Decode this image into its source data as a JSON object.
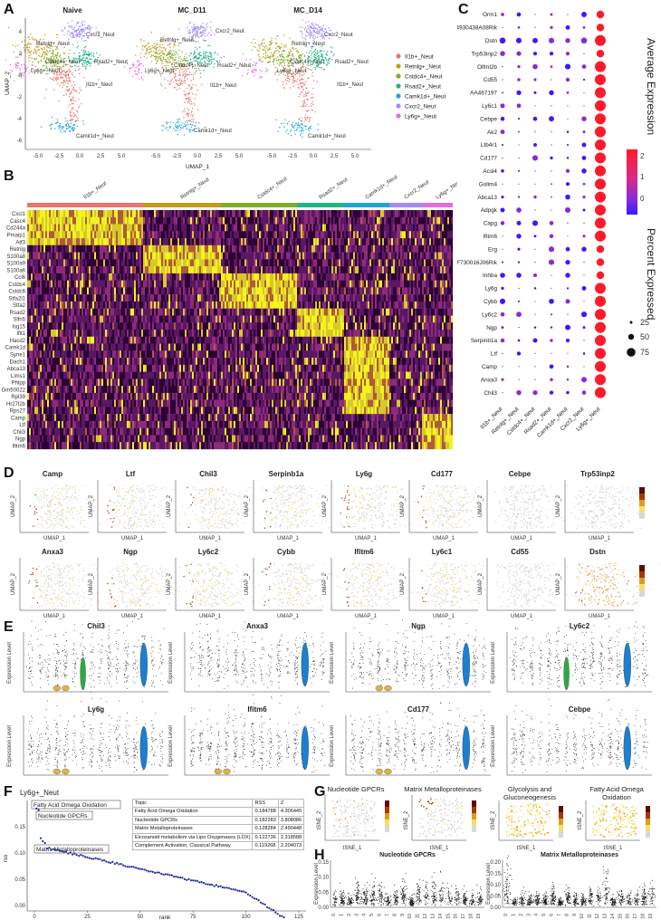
{
  "panel_labels": [
    "A",
    "B",
    "C",
    "D",
    "E",
    "F",
    "G",
    "H"
  ],
  "panelA": {
    "titles": [
      "Naive",
      "MC_D11",
      "MC_D14"
    ],
    "xlabel": "UMAP_1",
    "ylabel": "UMAP_2",
    "xticks": [
      "-5.0",
      "-2.5",
      "0.0",
      "2.5",
      "5.0"
    ],
    "yticks": [
      "4",
      "2",
      "0",
      "-2",
      "-4",
      "-6"
    ],
    "legend": [
      "Il1b+_Neut",
      "Retnlg+_Neut",
      "Cstdc4+_Neut",
      "Rsad2+_Neut",
      "Camk1d+_Neut",
      "Cxcr2_Neut",
      "Ly6g+_Neut"
    ],
    "cluster_labels": [
      "Cxcr2_Neut",
      "Retnlg+_Neut",
      "Cstdc4+_Neut",
      "Rsad2+_Neut",
      "Ly6g+_Neut",
      "Il1b+_Neut",
      "Camk1d+_Neut"
    ]
  },
  "colors": {
    "clusters": [
      "#e8766d",
      "#c39b1d",
      "#7cae2a",
      "#21b487",
      "#1ca6d8",
      "#a48cf5",
      "#e56ce0"
    ],
    "heat": [
      "#2b0033",
      "#5a1764",
      "#8e2a7a",
      "#b05a3b",
      "#d7c92b",
      "#f3f31f"
    ],
    "dot": [
      "#3a1aff",
      "#8a2bd6",
      "#d92a8a",
      "#ff1a2a"
    ],
    "feat": [
      "#d8d8d8",
      "#f2e06a",
      "#e39a1c",
      "#a33a06",
      "#5a0f02"
    ],
    "violin": [
      "#e0b24a",
      "#2fa845",
      "#1c7fcf",
      "#3a8ad6"
    ]
  },
  "panelB": {
    "groups": [
      "Il1b+_Neut",
      "Retnlg+_Neut",
      "Cstdc4+_Neut",
      "Rsad2+_Neut",
      "Camk1d+_Neut",
      "Cxcr2_Neut",
      "Ly6g+_Neut"
    ],
    "genes": [
      "Cxcl1",
      "Casc4",
      "Cd244a",
      "Pmaip1",
      "Atf3",
      "Retnlg",
      "S100a8",
      "S100a9",
      "S100a6",
      "Ccl6",
      "Cstdc4",
      "Cstdc6",
      "Stfa2l1",
      "Stfa2",
      "Rsad2",
      "Slfn5",
      "Isg15",
      "Ifit1",
      "Hacd2",
      "Camk1d",
      "Syne1",
      "Dach1",
      "Abca13",
      "Lims1",
      "Phlpp",
      "Gm50022",
      "Rpl39",
      "Hr27l2b",
      "Rps27",
      "Camp",
      "Ltf",
      "Chil3",
      "Ngp",
      "Ifitm6"
    ]
  },
  "panelC": {
    "genes": [
      "Orm1",
      "4930438A08Rik",
      "Dstn",
      "Trp53inp2",
      "Olfml2b",
      "Cd55",
      "AA467197",
      "Ly6c1",
      "Cebpe",
      "Ak2",
      "Ltb4r1",
      "Cd177",
      "Acsl4",
      "Golim4",
      "Abca13",
      "Adpgk",
      "Capg",
      "Ifitm6",
      "Erg",
      "F730016J06Rik",
      "Inhba",
      "Ly6g",
      "Cybb",
      "Ly6c2",
      "Ngp",
      "Serpinb1a",
      "Ltf",
      "Camp",
      "Anxa3",
      "Chil3"
    ],
    "groups": [
      "Il1b+_Neut",
      "Retnlg+_Neut",
      "Cstdc4+_Neut",
      "Rsad2+_Neut",
      "Camk1d+_Neut",
      "Cxcr2_Neut",
      "Ly6g+_Neut"
    ],
    "legend_avg_title": "Average Expression",
    "legend_avg_ticks": [
      "2",
      "1",
      "0"
    ],
    "legend_pct_title": "Percent Expressed",
    "legend_pct_values": [
      "25",
      "50",
      "75"
    ]
  },
  "panelD": {
    "genes_row1": [
      "Camp",
      "Ltf",
      "Chil3",
      "Serpinb1a",
      "Ly6g",
      "Cd177",
      "Cebpe",
      "Trp53inp2"
    ],
    "genes_row2": [
      "Anxa3",
      "Ngp",
      "Ly6c2",
      "Cybb",
      "Ifitm6",
      "Ly6c1",
      "Cd55",
      "Dstn"
    ],
    "xlabel": "UMAP_1",
    "ylabel": "UMAP_2",
    "scale_ticks_row1": [
      "2.0",
      "1.5",
      "1.0",
      "0.5",
      "0.0"
    ],
    "scale_ticks_row2": [
      "2.0",
      "1.5",
      "1.0",
      "0.5",
      "0.0"
    ]
  },
  "panelE": {
    "genes": [
      "Chil3",
      "Anxa3",
      "Ngp",
      "Ly6c2",
      "Ly6g",
      "Ifitm6",
      "Cd177",
      "Cebpe"
    ],
    "ylabel": "Expression Level"
  },
  "panelF": {
    "title": "Ly6g+_Neut",
    "xlabel": "rank",
    "ylabel": "rss",
    "xticks": [
      "0",
      "25",
      "50",
      "75",
      "100",
      "125"
    ],
    "yticks": [
      "0.00",
      "0.05",
      "0.10",
      "0.15"
    ],
    "annotations": [
      "Fatty Acid Omega Oxidation",
      "Nucleotide GPCRs",
      "Matrix Metalloproteinases"
    ],
    "table_header": [
      "Topic",
      "RSS",
      "Z"
    ],
    "table_rows": [
      [
        "Fatty Acid Omega Oxidation",
        "0.184788",
        "4.306445"
      ],
      [
        "Nucleotide GPCRs",
        "0.182283",
        "3.808086"
      ],
      [
        "Matrix Metalloproteinases",
        "0.128284",
        "2.490448"
      ],
      [
        "Eicosanoid metabolism via Lipo Oxygenases (LOX)",
        "0.122736",
        "2.318588"
      ],
      [
        "Complement Activation, Classical Pathway",
        "0.119268",
        "2.204073"
      ]
    ]
  },
  "panelG": {
    "titles": [
      "Nucleotide GPCRs",
      "Matrix Metalloproteinases",
      "Glycolysis and Gluconeogenesis",
      "Fatty Acid Omega Oxidation"
    ],
    "xlabel": "tSNE_1",
    "ylabel": "tSNE_2",
    "xticks": [
      "-50",
      "-25",
      "0",
      "25",
      "50"
    ]
  },
  "panelH": {
    "titles": [
      "Nucleotide GPCRs",
      "Matrix Metalloproteinases"
    ],
    "ylabel": "Expression Level",
    "yticks_left": [
      "0.15",
      "0.10",
      "0.05",
      "0.00"
    ],
    "yticks_right": [
      "0.20",
      "0.15",
      "0.10",
      "0.05",
      "0.00"
    ],
    "xticks": [
      "0",
      "1",
      "2",
      "3",
      "4",
      "5",
      "6",
      "7",
      "8",
      "9",
      "10",
      "11",
      "12",
      "13",
      "14",
      "15",
      "16",
      "17",
      "18",
      "19"
    ]
  }
}
